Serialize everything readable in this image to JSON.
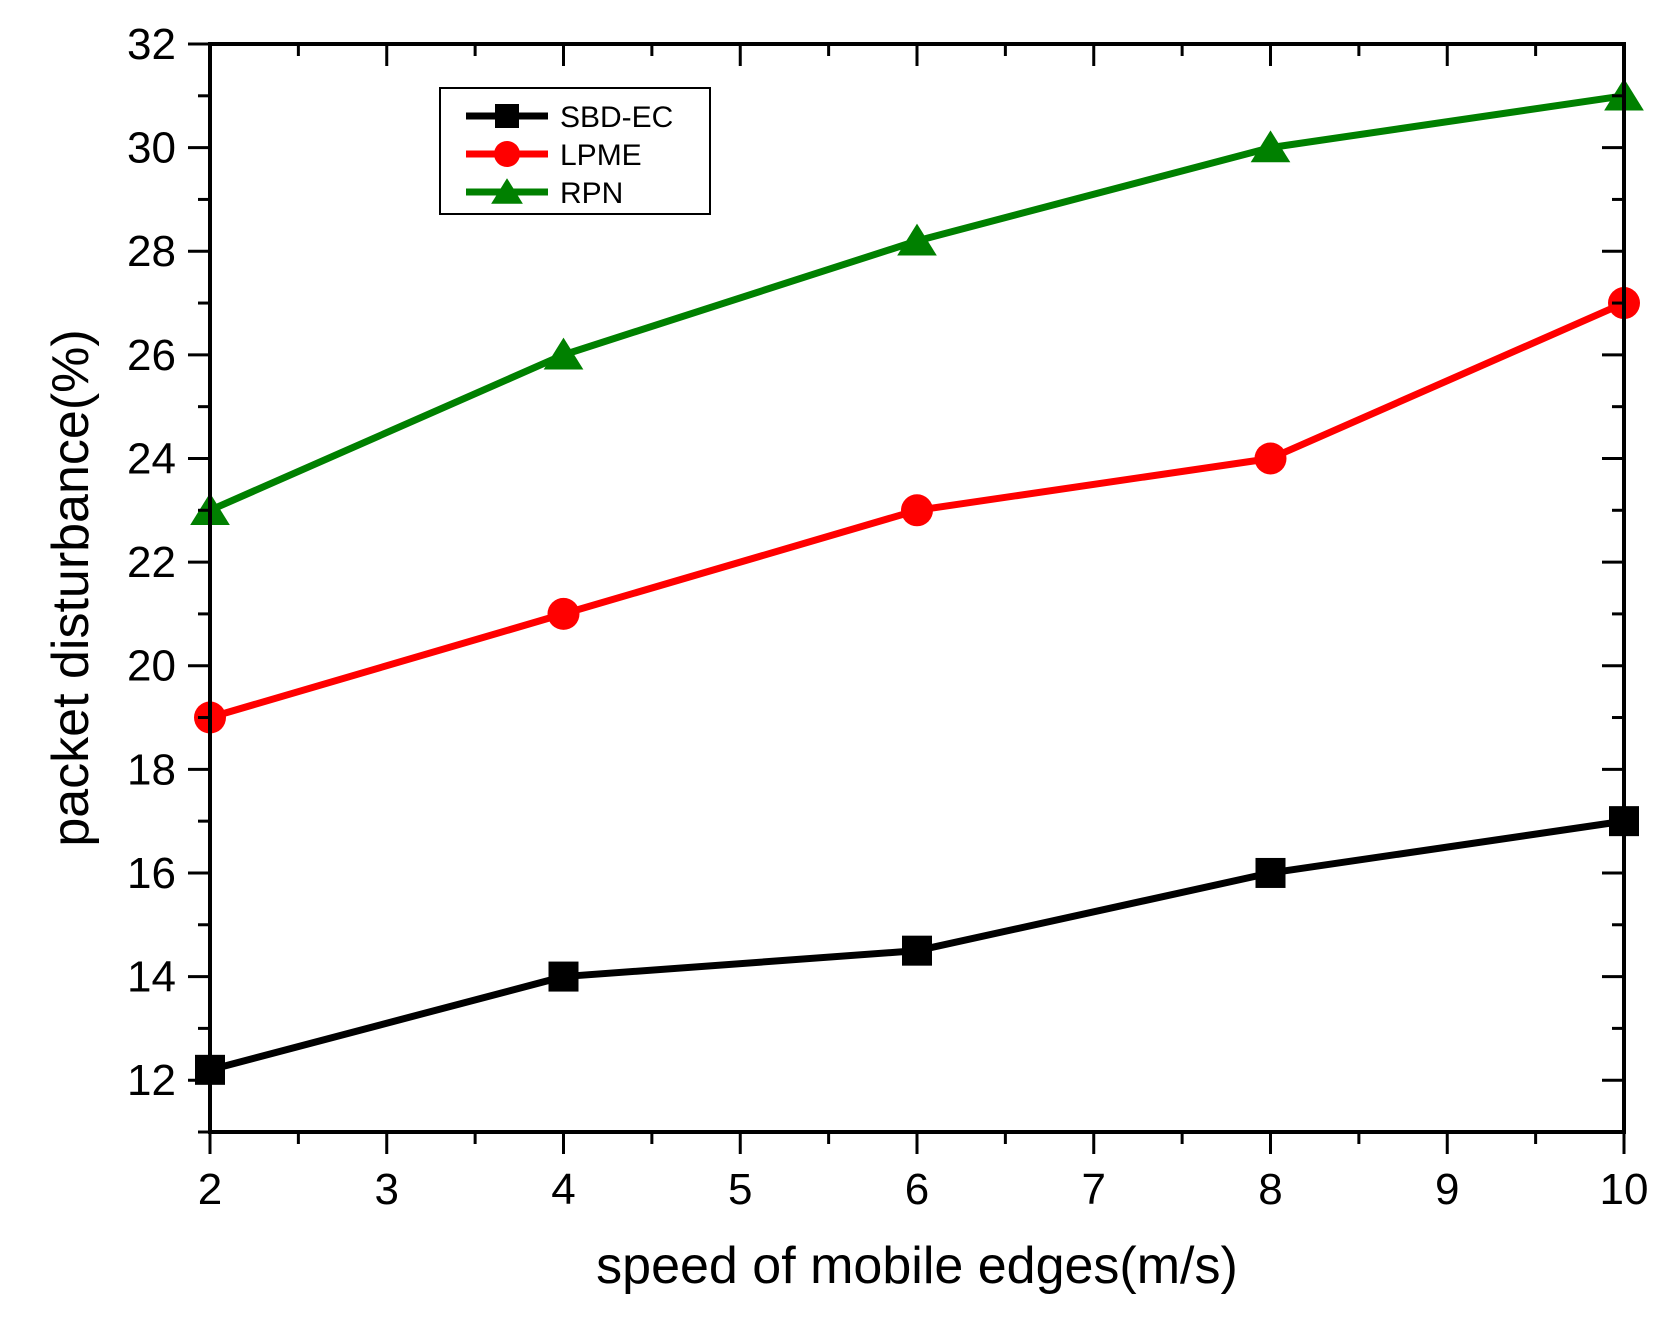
{
  "chart_data": {
    "type": "line",
    "title": "",
    "xlabel": "speed of mobile edges(m/s)",
    "ylabel": "packet disturbance(%)",
    "xlim": [
      2,
      10
    ],
    "ylim": [
      11,
      32
    ],
    "x_ticks": [
      2,
      3,
      4,
      5,
      6,
      7,
      8,
      9,
      10
    ],
    "y_ticks": [
      12,
      14,
      16,
      18,
      20,
      22,
      24,
      26,
      28,
      30,
      32
    ],
    "legend_position": "top-left",
    "series": [
      {
        "name": "SBD-EC",
        "color": "#000000",
        "marker": "square",
        "x": [
          2,
          4,
          6,
          8,
          10
        ],
        "values": [
          12.2,
          14,
          14.5,
          16,
          17
        ]
      },
      {
        "name": "LPME",
        "color": "#ff0000",
        "marker": "circle",
        "x": [
          2,
          4,
          6,
          8,
          10
        ],
        "values": [
          19,
          21,
          23,
          24,
          27
        ]
      },
      {
        "name": "RPN",
        "color": "#008000",
        "marker": "triangle",
        "x": [
          2,
          4,
          6,
          8,
          10
        ],
        "values": [
          23,
          26,
          28.2,
          30,
          31
        ]
      }
    ]
  }
}
